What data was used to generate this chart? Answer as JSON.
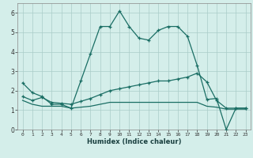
{
  "xlabel": "Humidex (Indice chaleur)",
  "bg_color": "#d4eeea",
  "grid_color": "#aaccc8",
  "line_color": "#1a6e64",
  "xlim": [
    -0.5,
    23.5
  ],
  "ylim": [
    0,
    6.5
  ],
  "xticks": [
    0,
    1,
    2,
    3,
    4,
    5,
    6,
    7,
    8,
    9,
    10,
    11,
    12,
    13,
    14,
    15,
    16,
    17,
    18,
    19,
    20,
    21,
    22,
    23
  ],
  "yticks": [
    0,
    1,
    2,
    3,
    4,
    5,
    6
  ],
  "series1_x": [
    0,
    1,
    2,
    3,
    4,
    5,
    6,
    7,
    8,
    9,
    10,
    11,
    12,
    13,
    14,
    15,
    16,
    17,
    18,
    19,
    20,
    21,
    22,
    23
  ],
  "series1_y": [
    2.4,
    1.9,
    1.7,
    1.3,
    1.3,
    1.1,
    2.5,
    3.9,
    5.3,
    5.3,
    6.1,
    5.3,
    4.7,
    4.6,
    5.1,
    5.3,
    5.3,
    4.8,
    3.3,
    1.55,
    1.6,
    0.0,
    1.1,
    1.1
  ],
  "series2_x": [
    0,
    1,
    2,
    3,
    4,
    5,
    6,
    7,
    8,
    9,
    10,
    11,
    12,
    13,
    14,
    15,
    16,
    17,
    18,
    19,
    20,
    21,
    22,
    23
  ],
  "series2_y": [
    1.7,
    1.5,
    1.65,
    1.4,
    1.35,
    1.3,
    1.45,
    1.6,
    1.8,
    2.0,
    2.1,
    2.2,
    2.3,
    2.4,
    2.5,
    2.5,
    2.6,
    2.7,
    2.9,
    2.45,
    1.5,
    1.1,
    1.1,
    1.1
  ],
  "series3_x": [
    0,
    1,
    2,
    3,
    4,
    5,
    6,
    7,
    8,
    9,
    10,
    11,
    12,
    13,
    14,
    15,
    16,
    17,
    18,
    19,
    20,
    21,
    22,
    23
  ],
  "series3_y": [
    1.5,
    1.3,
    1.2,
    1.2,
    1.2,
    1.1,
    1.15,
    1.2,
    1.3,
    1.4,
    1.4,
    1.4,
    1.4,
    1.4,
    1.4,
    1.4,
    1.4,
    1.4,
    1.4,
    1.2,
    1.15,
    1.05,
    1.05,
    1.05
  ]
}
